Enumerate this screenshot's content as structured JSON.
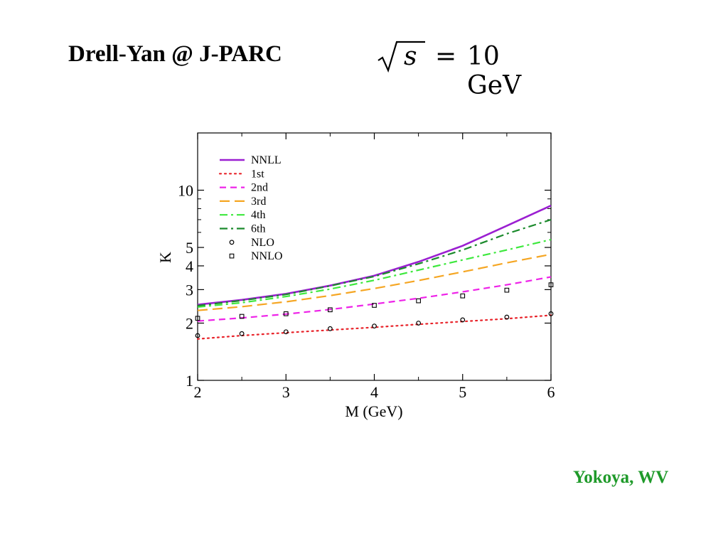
{
  "slide": {
    "title": "Drell-Yan @ J-PARC",
    "formula": {
      "radicand": "s",
      "equals": "=",
      "value": "10 GeV"
    },
    "credit": "Yokoya, WV"
  },
  "chart_data": {
    "type": "line",
    "xlabel": "M (GeV)",
    "ylabel": "K",
    "xlim": [
      2,
      6
    ],
    "ylim": [
      1,
      20
    ],
    "y_scale": "log",
    "x_ticks": [
      2,
      3,
      4,
      5,
      6
    ],
    "y_ticks": [
      1,
      2,
      3,
      4,
      5,
      10
    ],
    "legend_position": "top-left",
    "grid": false,
    "series": [
      {
        "name": "NNLL",
        "style": "solid",
        "color": "#9b1fd1",
        "x": [
          2,
          2.5,
          3,
          3.5,
          4,
          4.5,
          5,
          5.5,
          6
        ],
        "y": [
          2.5,
          2.65,
          2.85,
          3.15,
          3.55,
          4.2,
          5.1,
          6.5,
          8.3
        ]
      },
      {
        "name": "1st",
        "style": "dotted",
        "color": "#e8232a",
        "x": [
          2,
          2.5,
          3,
          3.5,
          4,
          4.5,
          5,
          5.5,
          6
        ],
        "y": [
          1.65,
          1.72,
          1.78,
          1.84,
          1.9,
          1.97,
          2.04,
          2.11,
          2.2
        ]
      },
      {
        "name": "2nd",
        "style": "dashed",
        "color": "#ee23e8",
        "x": [
          2,
          2.5,
          3,
          3.5,
          4,
          4.5,
          5,
          5.5,
          6
        ],
        "y": [
          2.05,
          2.13,
          2.23,
          2.36,
          2.52,
          2.7,
          2.92,
          3.18,
          3.5
        ]
      },
      {
        "name": "3rd",
        "style": "longdash",
        "color": "#f5a623",
        "x": [
          2,
          2.5,
          3,
          3.5,
          4,
          4.5,
          5,
          5.5,
          6
        ],
        "y": [
          2.33,
          2.44,
          2.59,
          2.79,
          3.04,
          3.35,
          3.72,
          4.15,
          4.6
        ]
      },
      {
        "name": "4th",
        "style": "dashdot",
        "color": "#3de83d",
        "x": [
          2,
          2.5,
          3,
          3.5,
          4,
          4.5,
          5,
          5.5,
          6
        ],
        "y": [
          2.43,
          2.56,
          2.76,
          3.02,
          3.36,
          3.8,
          4.3,
          4.85,
          5.5
        ]
      },
      {
        "name": "6th",
        "style": "dashdot",
        "color": "#1b8a2c",
        "x": [
          2,
          2.5,
          3,
          3.5,
          4,
          4.5,
          5,
          5.5,
          6
        ],
        "y": [
          2.47,
          2.63,
          2.83,
          3.14,
          3.52,
          4.1,
          4.85,
          5.9,
          7.0
        ]
      },
      {
        "name": "NLO",
        "style": "marker-circle",
        "color": "#000000",
        "x": [
          2,
          2.5,
          3,
          3.5,
          4,
          4.5,
          5,
          5.5,
          6
        ],
        "y": [
          1.72,
          1.76,
          1.8,
          1.87,
          1.93,
          2.0,
          2.08,
          2.15,
          2.24
        ]
      },
      {
        "name": "NNLO",
        "style": "marker-square",
        "color": "#000000",
        "x": [
          2,
          2.5,
          3,
          3.5,
          4,
          4.5,
          5,
          5.5,
          6
        ],
        "y": [
          2.12,
          2.17,
          2.24,
          2.35,
          2.48,
          2.62,
          2.78,
          2.98,
          3.18
        ]
      }
    ]
  }
}
